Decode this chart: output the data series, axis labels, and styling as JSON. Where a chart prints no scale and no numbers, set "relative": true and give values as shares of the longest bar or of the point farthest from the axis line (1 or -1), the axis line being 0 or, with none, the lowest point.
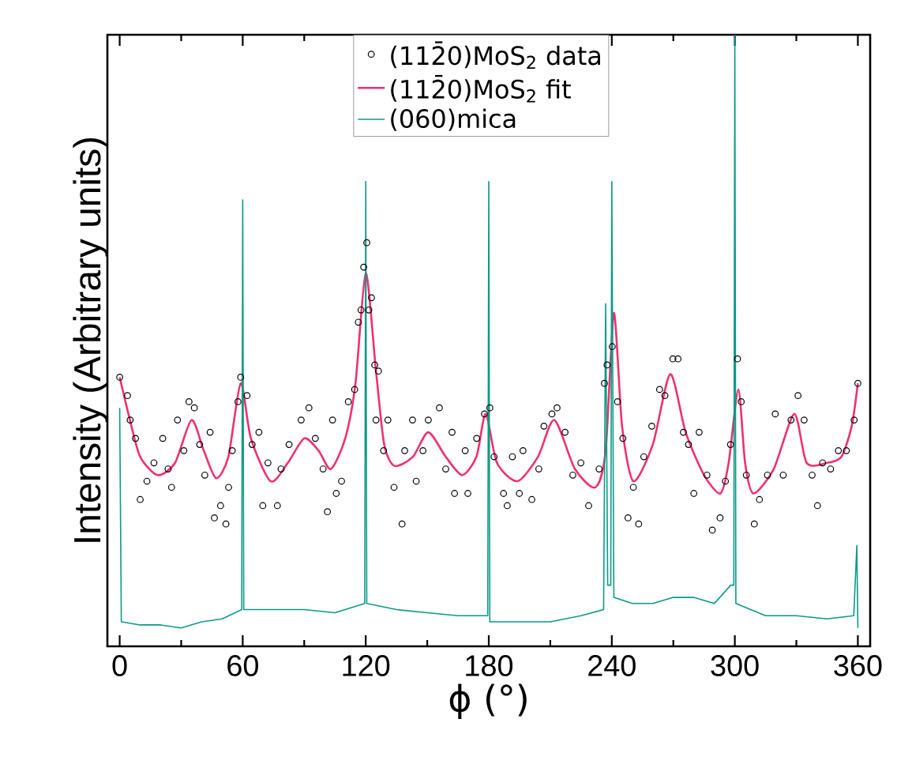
{
  "chart_data": {
    "type": "line",
    "relative": true,
    "xlabel": "ϕ (°)",
    "ylabel": "Intensity (Arbitrary units)",
    "xlim": [
      -6,
      366
    ],
    "xticks": [
      0,
      60,
      120,
      180,
      240,
      300,
      360
    ],
    "legend": "top",
    "series": [
      {
        "name": "(112̄0)MoS$_{2}$ data",
        "type": "scatter",
        "marker": "circle",
        "color": "#000000",
        "x": [
          0,
          3.8,
          5.1,
          7.7,
          10,
          13.3,
          16.7,
          21,
          23.6,
          25.3,
          28.2,
          31.3,
          33.8,
          36.4,
          39,
          41.5,
          44.1,
          46.2,
          49.2,
          51.8,
          53.1,
          54.9,
          57.7,
          59,
          62.1,
          64.6,
          67.9,
          69.8,
          72.3,
          76.9,
          78.7,
          82.6,
          88.5,
          92.3,
          95.4,
          99.2,
          101.3,
          103.8,
          105.6,
          108.2,
          111.5,
          114.6,
          116.4,
          117.7,
          119,
          120.5,
          121.5,
          122.8,
          124.4,
          125,
          126.2,
          128.7,
          130.8,
          133.8,
          137.7,
          139,
          142.8,
          144.6,
          147.9,
          150.5,
          155.9,
          159,
          162.1,
          163.3,
          168.5,
          169.8,
          174.1,
          177.9,
          180.5,
          182.6,
          187.2,
          189,
          191.5,
          194.9,
          196.7,
          201,
          204.4,
          206.9,
          210.8,
          213.3,
          217.2,
          221,
          224.9,
          228.7,
          233.8,
          236.4,
          237.7,
          240.2,
          242.8,
          245.4,
          247.9,
          250.5,
          253.1,
          255.6,
          259.5,
          263.3,
          265.9,
          269.8,
          272.3,
          274.9,
          277.4,
          280,
          282.6,
          286.4,
          289,
          292.8,
          295.4,
          297.9,
          301.3,
          303.1,
          305.6,
          309.5,
          312,
          315.9,
          319.7,
          323.6,
          327.4,
          330.8,
          333.8,
          337.7,
          340.3,
          342.8,
          346.7,
          350.5,
          354.4,
          358.2,
          360
        ],
        "values": [
          0.44,
          0.41,
          0.37,
          0.34,
          0.24,
          0.27,
          0.3,
          0.34,
          0.29,
          0.26,
          0.37,
          0.32,
          0.4,
          0.39,
          0.33,
          0.28,
          0.35,
          0.21,
          0.23,
          0.2,
          0.26,
          0.32,
          0.4,
          0.44,
          0.41,
          0.33,
          0.35,
          0.23,
          0.3,
          0.23,
          0.29,
          0.33,
          0.37,
          0.39,
          0.34,
          0.29,
          0.22,
          0.37,
          0.25,
          0.27,
          0.4,
          0.42,
          0.53,
          0.55,
          0.62,
          0.66,
          0.55,
          0.57,
          0.46,
          0.37,
          0.45,
          0.32,
          0.37,
          0.26,
          0.2,
          0.32,
          0.37,
          0.27,
          0.32,
          0.37,
          0.39,
          0.29,
          0.35,
          0.25,
          0.32,
          0.25,
          0.34,
          0.38,
          0.39,
          0.31,
          0.25,
          0.23,
          0.31,
          0.25,
          0.32,
          0.24,
          0.29,
          0.36,
          0.38,
          0.39,
          0.35,
          0.28,
          0.3,
          0.23,
          0.29,
          0.43,
          0.46,
          0.49,
          0.4,
          0.34,
          0.21,
          0.26,
          0.2,
          0.31,
          0.36,
          0.42,
          0.41,
          0.47,
          0.47,
          0.35,
          0.33,
          0.25,
          0.35,
          0.28,
          0.19,
          0.21,
          0.27,
          0.33,
          0.47,
          0.4,
          0.28,
          0.2,
          0.24,
          0.28,
          0.38,
          0.28,
          0.37,
          0.41,
          0.37,
          0.28,
          0.23,
          0.3,
          0.29,
          0.32,
          0.32,
          0.37,
          0.43
        ]
      },
      {
        "name": "(112̄0)MoS$_{2}$ fit",
        "color": "#f0306e",
        "x": [
          0,
          5,
          10,
          18.5,
          27,
          35,
          41,
          47,
          53,
          59,
          64,
          73.6,
          82,
          90,
          97,
          103,
          110,
          115,
          120,
          125,
          129,
          134,
          143,
          150.5,
          159,
          167,
          174,
          178.5,
          184,
          194,
          204,
          212,
          222,
          232,
          237,
          241,
          245,
          250.5,
          260,
          268.5,
          276,
          285,
          293,
          297,
          301.7,
          305,
          309,
          319,
          329,
          335,
          345,
          352,
          357,
          360
        ],
        "values": [
          0.44,
          0.37,
          0.31,
          0.28,
          0.3,
          0.37,
          0.32,
          0.275,
          0.31,
          0.43,
          0.34,
          0.27,
          0.3,
          0.34,
          0.32,
          0.29,
          0.34,
          0.43,
          0.61,
          0.45,
          0.33,
          0.295,
          0.31,
          0.35,
          0.31,
          0.28,
          0.31,
          0.38,
          0.3,
          0.27,
          0.31,
          0.37,
          0.29,
          0.26,
          0.32,
          0.545,
          0.36,
          0.27,
          0.33,
          0.445,
          0.35,
          0.28,
          0.25,
          0.3,
          0.42,
          0.3,
          0.25,
          0.29,
          0.38,
          0.3,
          0.3,
          0.31,
          0.36,
          0.43
        ]
      },
      {
        "name": "(060)mica",
        "color": "#0a9a86",
        "x": [
          0,
          0.8,
          10,
          20,
          30,
          40,
          50,
          59.5,
          60,
          60.5,
          75,
          90,
          105,
          119.5,
          120,
          120.5,
          135,
          150,
          165,
          179.5,
          180,
          180.5,
          195,
          210,
          225,
          236,
          237,
          238,
          239.5,
          240,
          241,
          250,
          260,
          270,
          280,
          290,
          298,
          299.5,
          300,
          300.5,
          315,
          330,
          345,
          358,
          359.5,
          360
        ],
        "values": [
          0.39,
          0.04,
          0.035,
          0.035,
          0.03,
          0.04,
          0.045,
          0.06,
          0.73,
          0.06,
          0.06,
          0.06,
          0.055,
          0.07,
          0.76,
          0.07,
          0.06,
          0.055,
          0.05,
          0.05,
          0.76,
          0.04,
          0.04,
          0.04,
          0.05,
          0.06,
          0.56,
          0.1,
          0.1,
          0.76,
          0.08,
          0.07,
          0.07,
          0.08,
          0.08,
          0.07,
          0.1,
          0.1,
          1.0,
          0.07,
          0.05,
          0.05,
          0.045,
          0.05,
          0.165,
          0.03
        ]
      }
    ]
  }
}
